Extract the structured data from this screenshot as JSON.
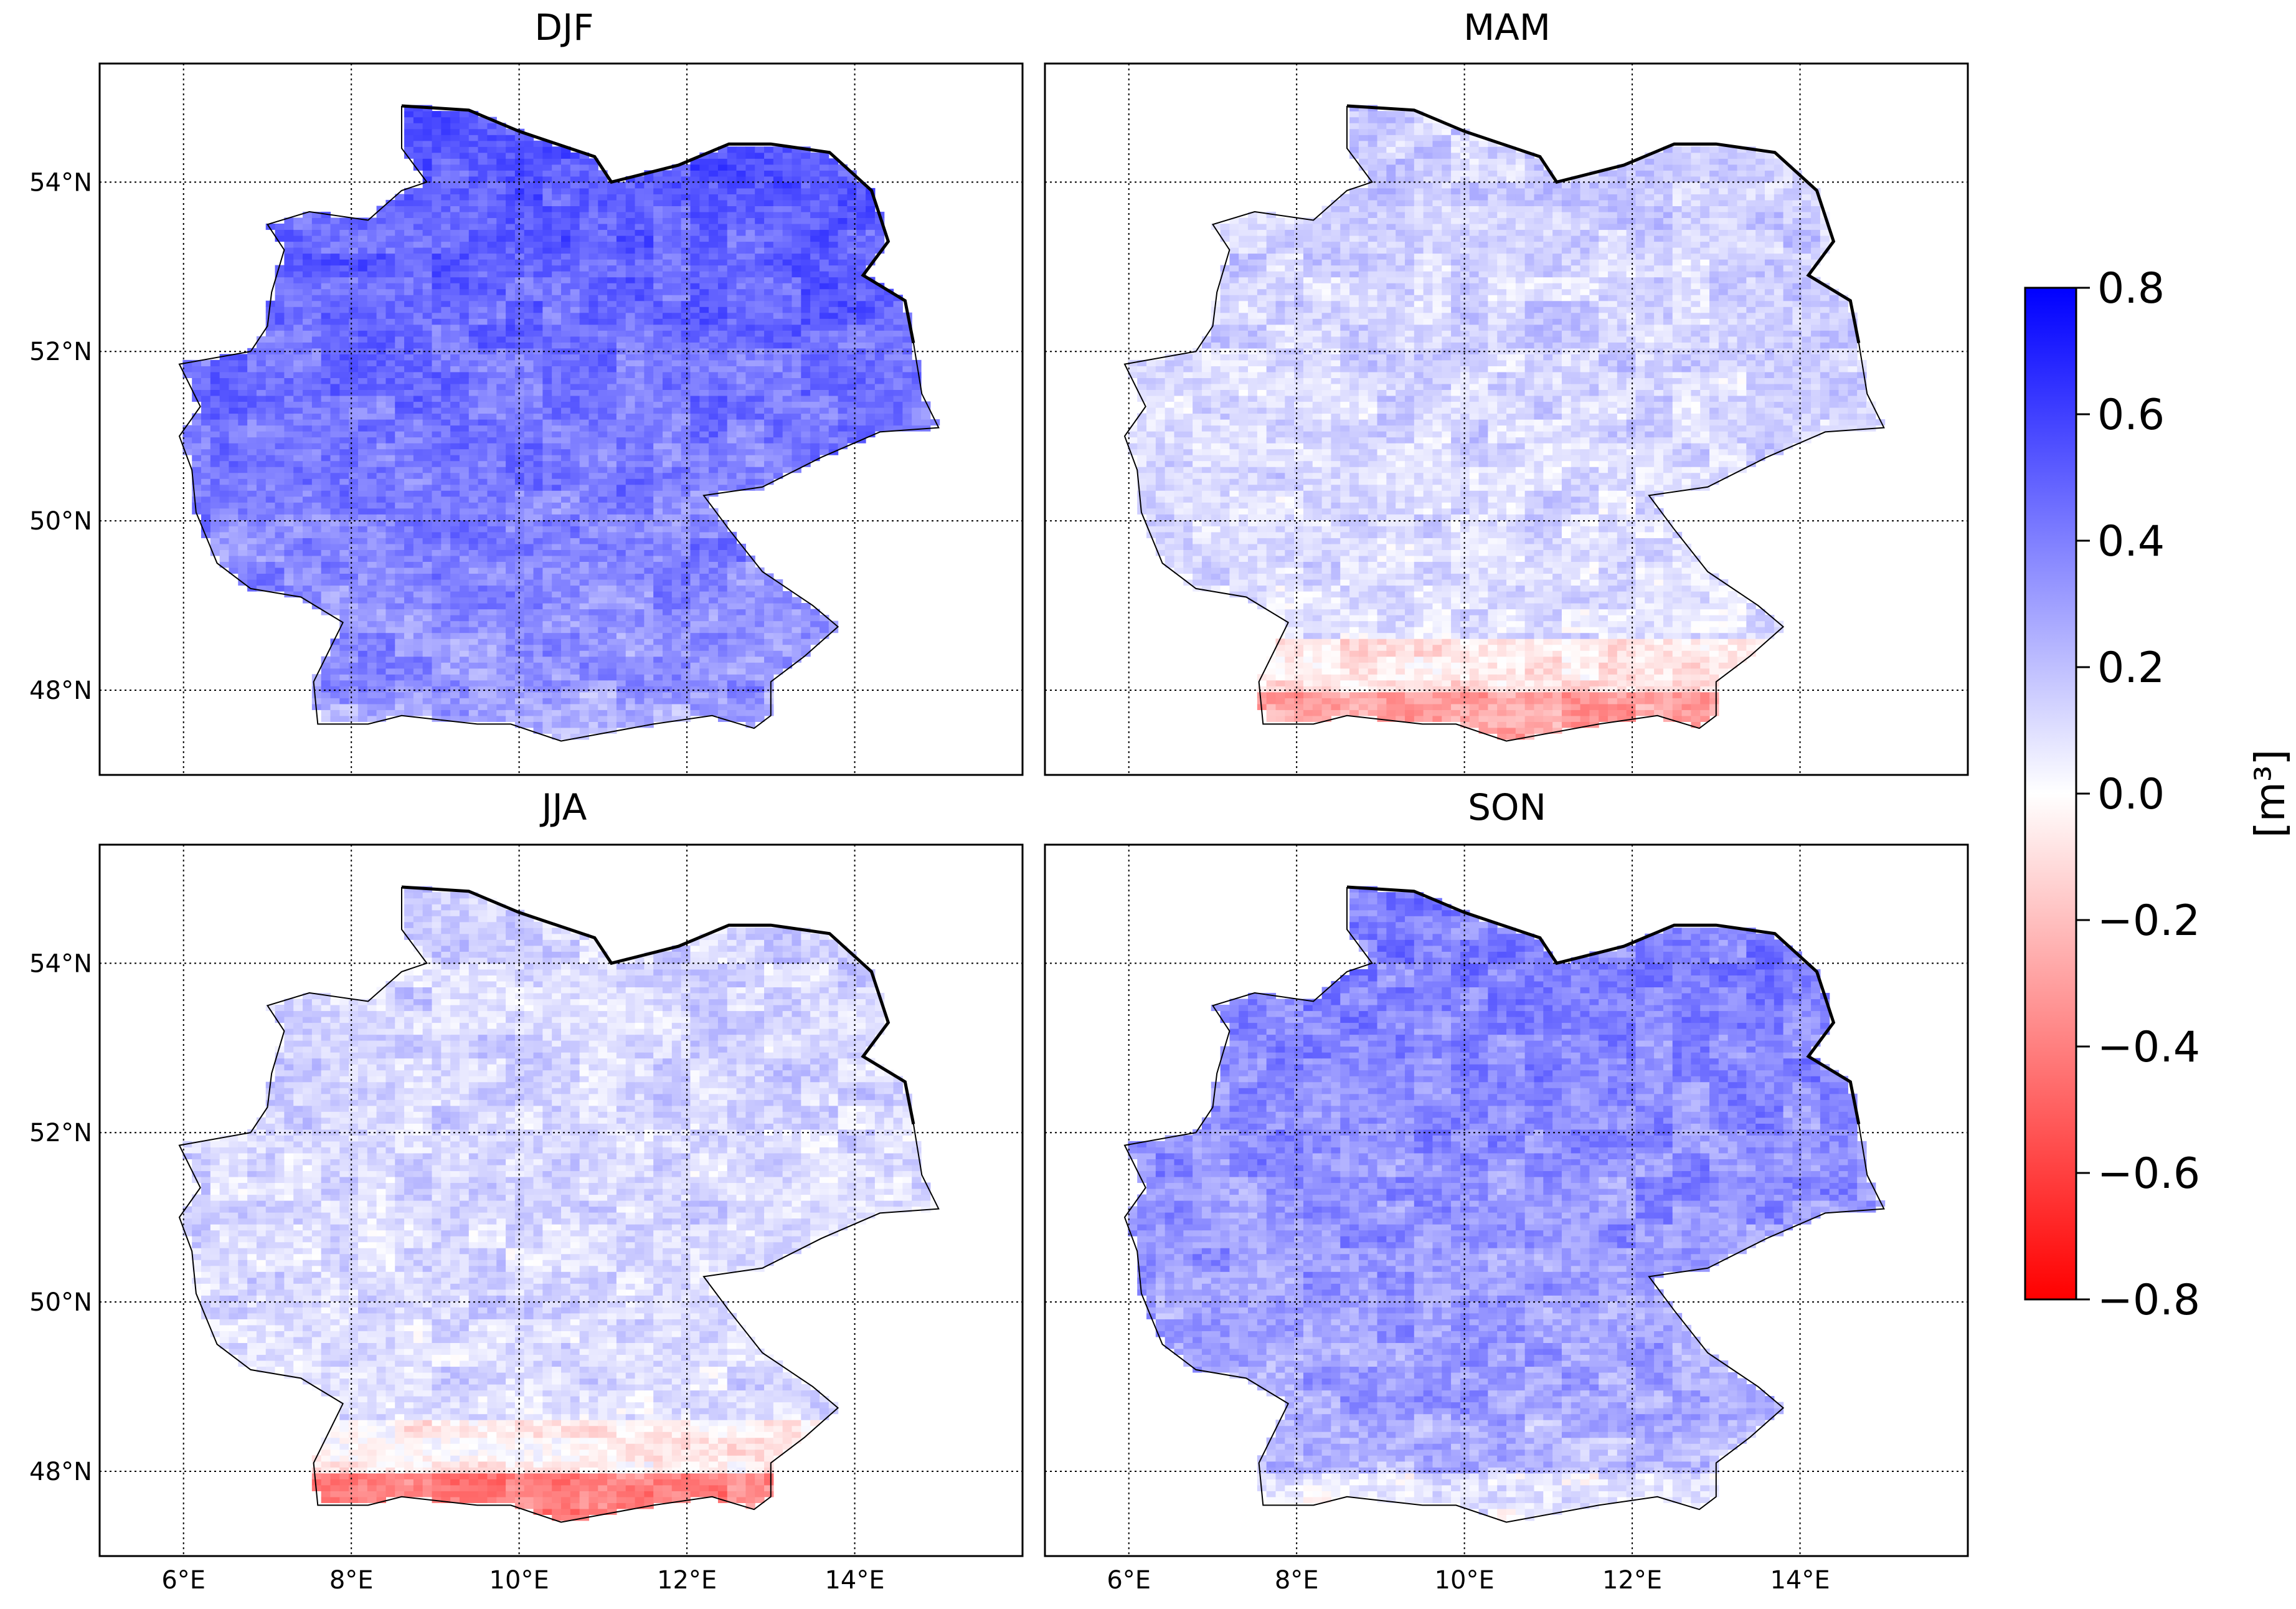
{
  "chart_data": {
    "type": "heatmap",
    "description_units": "[m³]",
    "colorbar": {
      "label": "[m³]",
      "vmin": -0.8,
      "vmax": 0.8,
      "colors": {
        "low": "#ff0000",
        "mid": "#ffffff",
        "high": "#0000ff"
      },
      "ticks": [
        0.8,
        0.6,
        0.4,
        0.2,
        0.0,
        -0.2,
        -0.4,
        -0.6,
        -0.8
      ],
      "tick_labels": [
        "0.8",
        "0.6",
        "0.4",
        "0.2",
        "0.0",
        "−0.2",
        "−0.4",
        "−0.6",
        "−0.8"
      ]
    },
    "axes": {
      "lon_range": [
        5,
        16
      ],
      "lat_range": [
        47,
        55.4
      ],
      "lon_ticks": [
        6,
        8,
        10,
        12,
        14
      ],
      "lon_tick_labels": [
        "6°E",
        "8°E",
        "10°E",
        "12°E",
        "14°E"
      ],
      "lat_ticks": [
        48,
        50,
        52,
        54
      ],
      "lat_tick_labels": [
        "48°N",
        "50°N",
        "52°N",
        "54°N"
      ],
      "grid": true
    },
    "panels": [
      {
        "id": "djf",
        "title": "DJF",
        "mean": 0.42,
        "north_extra": 0.25,
        "south_extra": 0.0,
        "alps_extra": -0.05,
        "noise": 0.08
      },
      {
        "id": "mam",
        "title": "MAM",
        "mean": 0.12,
        "north_extra": 0.08,
        "south_extra": -0.18,
        "alps_extra": -0.2,
        "noise": 0.07
      },
      {
        "id": "jja",
        "title": "JJA",
        "mean": 0.12,
        "north_extra": 0.05,
        "south_extra": -0.15,
        "alps_extra": -0.35,
        "noise": 0.07
      },
      {
        "id": "son",
        "title": "SON",
        "mean": 0.33,
        "north_extra": 0.15,
        "south_extra": -0.05,
        "alps_extra": -0.15,
        "noise": 0.08
      }
    ]
  }
}
